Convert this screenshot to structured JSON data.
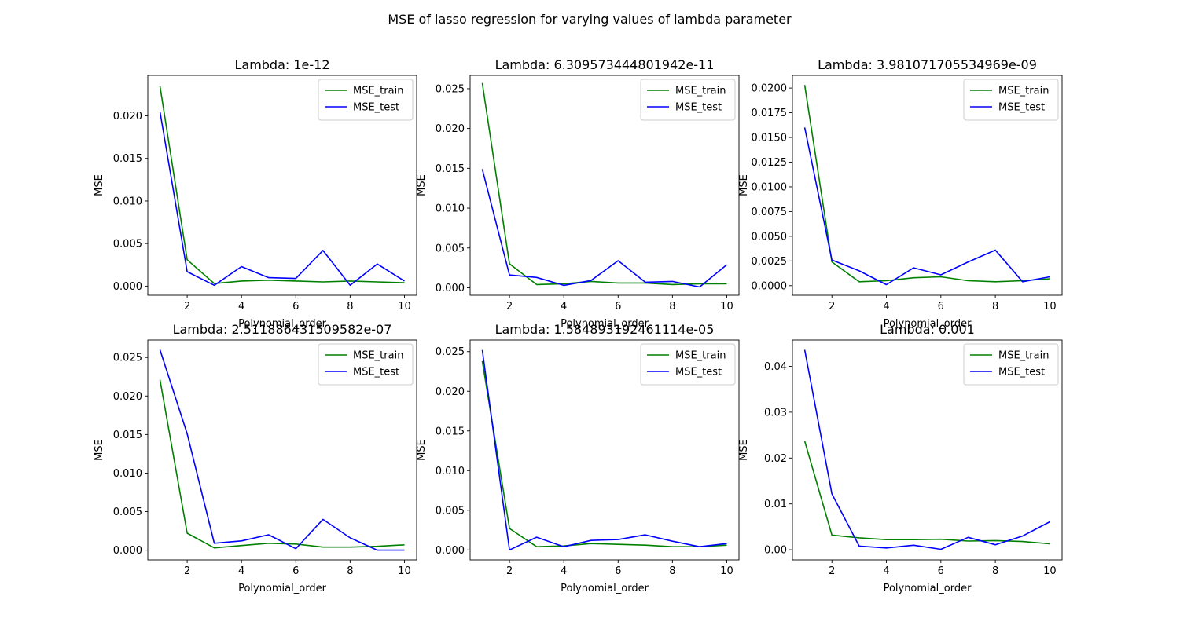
{
  "figure": {
    "suptitle": "MSE of lasso regression for varying values of lambda parameter"
  },
  "chart_data": [
    {
      "type": "line",
      "title": "Lambda: 1e-12",
      "xlabel": "Polynomial_order",
      "ylabel": "MSE",
      "x": [
        1,
        2,
        3,
        4,
        5,
        6,
        7,
        8,
        9,
        10
      ],
      "xticks": [
        "2",
        "4",
        "6",
        "8",
        "10"
      ],
      "yticks": [
        "0.000",
        "0.005",
        "0.010",
        "0.015",
        "0.020"
      ],
      "xlim": [
        0.55,
        10.45
      ],
      "ylim": [
        -0.00107,
        0.02475
      ],
      "legend": "upper-right",
      "grid": false,
      "series": [
        {
          "name": "MSE_train",
          "color": "#008000",
          "values": [
            0.0235,
            0.0031,
            0.0003,
            0.0006,
            0.0007,
            0.0006,
            0.0005,
            0.0006,
            0.0005,
            0.0004
          ]
        },
        {
          "name": "MSE_test",
          "color": "#0000ff",
          "values": [
            0.0205,
            0.0017,
            0.0001,
            0.0023,
            0.001,
            0.0009,
            0.0042,
            0.0001,
            0.0026,
            0.0006
          ]
        }
      ]
    },
    {
      "type": "line",
      "title": "Lambda: 6.309573444801942e-11",
      "xlabel": "Polynomial_order",
      "ylabel": "MSE",
      "x": [
        1,
        2,
        3,
        4,
        5,
        6,
        7,
        8,
        9,
        10
      ],
      "xticks": [
        "2",
        "4",
        "6",
        "8",
        "10"
      ],
      "yticks": [
        "0.000",
        "0.005",
        "0.010",
        "0.015",
        "0.020",
        "0.025"
      ],
      "xlim": [
        0.55,
        10.45
      ],
      "ylim": [
        -0.00094,
        0.02667
      ],
      "legend": "upper-right",
      "grid": false,
      "series": [
        {
          "name": "MSE_train",
          "color": "#008000",
          "values": [
            0.0257,
            0.003,
            0.0004,
            0.0005,
            0.0008,
            0.0006,
            0.0006,
            0.0004,
            0.0005,
            0.0005
          ]
        },
        {
          "name": "MSE_test",
          "color": "#0000ff",
          "values": [
            0.0149,
            0.0016,
            0.0013,
            0.0003,
            0.0009,
            0.0034,
            0.0007,
            0.0008,
            0.0001,
            0.0029
          ]
        }
      ]
    },
    {
      "type": "line",
      "title": "Lambda: 3.981071705534969e-09",
      "xlabel": "Polynomial_order",
      "ylabel": "MSE",
      "x": [
        1,
        2,
        3,
        4,
        5,
        6,
        7,
        8,
        9,
        10
      ],
      "xticks": [
        "2",
        "4",
        "6",
        "8",
        "10"
      ],
      "yticks": [
        "0.0000",
        "0.0025",
        "0.0050",
        "0.0075",
        "0.0100",
        "0.0125",
        "0.0150",
        "0.0175",
        "0.0200"
      ],
      "xlim": [
        0.55,
        10.45
      ],
      "ylim": [
        -0.00097,
        0.02128
      ],
      "legend": "upper-right",
      "grid": false,
      "series": [
        {
          "name": "MSE_train",
          "color": "#008000",
          "values": [
            0.0203,
            0.0024,
            0.0004,
            0.0005,
            0.0008,
            0.0009,
            0.0005,
            0.0004,
            0.0005,
            0.0007
          ]
        },
        {
          "name": "MSE_test",
          "color": "#0000ff",
          "values": [
            0.016,
            0.0026,
            0.0015,
            0.0001,
            0.0018,
            0.0011,
            0.0024,
            0.0036,
            0.0004,
            0.0009
          ]
        }
      ]
    },
    {
      "type": "line",
      "title": "Lambda: 2.511886431509582e-07",
      "xlabel": "Polynomial_order",
      "ylabel": "MSE",
      "x": [
        1,
        2,
        3,
        4,
        5,
        6,
        7,
        8,
        9,
        10
      ],
      "xticks": [
        "2",
        "4",
        "6",
        "8",
        "10"
      ],
      "yticks": [
        "0.000",
        "0.005",
        "0.010",
        "0.015",
        "0.020",
        "0.025"
      ],
      "xlim": [
        0.55,
        10.45
      ],
      "ylim": [
        -0.00126,
        0.02726
      ],
      "legend": "upper-right",
      "grid": false,
      "series": [
        {
          "name": "MSE_train",
          "color": "#008000",
          "values": [
            0.0221,
            0.0022,
            0.0003,
            0.0006,
            0.0009,
            0.0008,
            0.0004,
            0.0004,
            0.0005,
            0.0007
          ]
        },
        {
          "name": "MSE_test",
          "color": "#0000ff",
          "values": [
            0.026,
            0.0151,
            0.0009,
            0.0012,
            0.002,
            0.0002,
            0.004,
            0.0016,
            0.0,
            0.0
          ]
        }
      ]
    },
    {
      "type": "line",
      "title": "Lambda: 1.584893192461114e-05",
      "xlabel": "Polynomial_order",
      "ylabel": "MSE",
      "x": [
        1,
        2,
        3,
        4,
        5,
        6,
        7,
        8,
        9,
        10
      ],
      "xticks": [
        "2",
        "4",
        "6",
        "8",
        "10"
      ],
      "yticks": [
        "0.000",
        "0.005",
        "0.010",
        "0.015",
        "0.020",
        "0.025"
      ],
      "xlim": [
        0.55,
        10.45
      ],
      "ylim": [
        -0.00126,
        0.02646
      ],
      "legend": "upper-right",
      "grid": false,
      "series": [
        {
          "name": "MSE_train",
          "color": "#008000",
          "values": [
            0.0238,
            0.0027,
            0.0004,
            0.0005,
            0.0008,
            0.0007,
            0.0006,
            0.0004,
            0.0004,
            0.0006
          ]
        },
        {
          "name": "MSE_test",
          "color": "#0000ff",
          "values": [
            0.0252,
            0.0,
            0.0016,
            0.0004,
            0.0012,
            0.0013,
            0.0019,
            0.0011,
            0.0004,
            0.0008
          ]
        }
      ]
    },
    {
      "type": "line",
      "title": "Lambda: 0.001",
      "xlabel": "Polynomial_order",
      "ylabel": "MSE",
      "x": [
        1,
        2,
        3,
        4,
        5,
        6,
        7,
        8,
        9,
        10
      ],
      "xticks": [
        "2",
        "4",
        "6",
        "8",
        "10"
      ],
      "yticks": [
        "0.00",
        "0.01",
        "0.02",
        "0.03",
        "0.04"
      ],
      "xlim": [
        0.55,
        10.45
      ],
      "ylim": [
        -0.00221,
        0.04574
      ],
      "legend": "upper-right",
      "grid": false,
      "series": [
        {
          "name": "MSE_train",
          "color": "#008000",
          "values": [
            0.0237,
            0.0032,
            0.0026,
            0.0022,
            0.0022,
            0.0023,
            0.0019,
            0.002,
            0.0018,
            0.0013
          ]
        },
        {
          "name": "MSE_test",
          "color": "#0000ff",
          "values": [
            0.0436,
            0.0122,
            0.0008,
            0.0004,
            0.001,
            0.0001,
            0.0027,
            0.0011,
            0.003,
            0.0061
          ]
        }
      ]
    }
  ]
}
